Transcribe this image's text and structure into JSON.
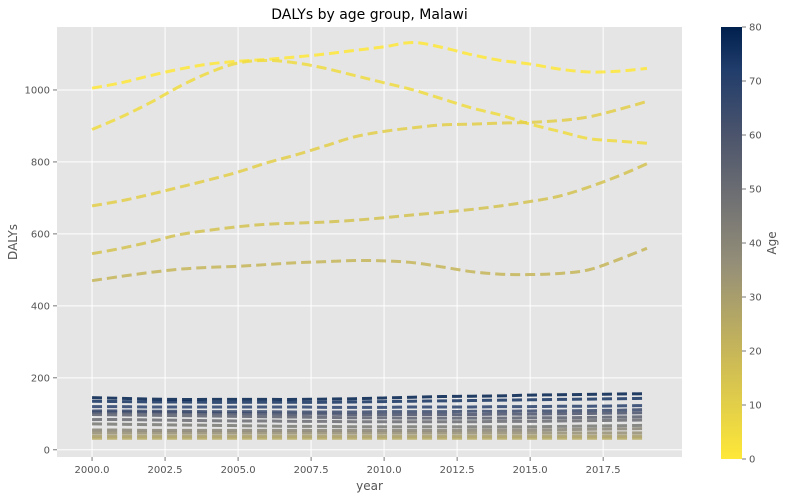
{
  "chart_data": {
    "type": "line",
    "title": "DALYs by age group, Malawi",
    "xlabel": "year",
    "ylabel": "DALYs",
    "colorbar_label": "Age",
    "colormap": "cividis (reversed)",
    "line_style": "dashed",
    "grid": true,
    "xlim": [
      1998.8,
      2020.2
    ],
    "ylim": [
      -20,
      1175
    ],
    "x_ticks": [
      2000,
      2002.5,
      2005,
      2007.5,
      2010,
      2012.5,
      2015,
      2017.5
    ],
    "x_tick_labels": [
      "2000.0",
      "2002.5",
      "2005.0",
      "2007.5",
      "2010.0",
      "2012.5",
      "2015.0",
      "2017.5"
    ],
    "y_ticks": [
      0,
      200,
      400,
      600,
      800,
      1000
    ],
    "y_tick_labels": [
      "0",
      "200",
      "400",
      "600",
      "800",
      "1000"
    ],
    "colorbar_ticks": [
      0,
      10,
      20,
      30,
      40,
      50,
      60,
      70,
      80
    ],
    "colorbar_tick_labels": [
      "0",
      "10",
      "20",
      "30",
      "40",
      "50",
      "60",
      "70",
      "80"
    ],
    "colorbar_range": [
      0,
      80
    ],
    "x": [
      2000,
      2001,
      2002,
      2003,
      2004,
      2005,
      2006,
      2007,
      2008,
      2009,
      2010,
      2011,
      2012,
      2013,
      2014,
      2015,
      2016,
      2017,
      2018,
      2019
    ],
    "series": [
      {
        "age": 0,
        "values": [
          1005,
          1020,
          1040,
          1058,
          1072,
          1080,
          1085,
          1092,
          1100,
          1110,
          1120,
          1132,
          1118,
          1098,
          1082,
          1072,
          1058,
          1050,
          1052,
          1060
        ]
      },
      {
        "age": 5,
        "values": [
          890,
          925,
          965,
          1010,
          1048,
          1075,
          1082,
          1075,
          1060,
          1040,
          1020,
          1000,
          975,
          950,
          930,
          905,
          885,
          865,
          858,
          852
        ]
      },
      {
        "age": 10,
        "values": [
          678,
          692,
          710,
          730,
          750,
          772,
          798,
          820,
          845,
          870,
          885,
          895,
          903,
          905,
          908,
          910,
          915,
          925,
          945,
          968
        ]
      },
      {
        "age": 15,
        "values": [
          545,
          560,
          578,
          598,
          610,
          620,
          627,
          630,
          633,
          638,
          645,
          653,
          660,
          668,
          678,
          690,
          705,
          730,
          760,
          795
        ]
      },
      {
        "age": 20,
        "values": [
          470,
          482,
          493,
          502,
          507,
          510,
          515,
          520,
          523,
          526,
          525,
          520,
          508,
          495,
          488,
          487,
          490,
          500,
          528,
          560
        ]
      },
      {
        "age": 25,
        "values": [
          32,
          32,
          32,
          32,
          32,
          32,
          32,
          32,
          32,
          32,
          32,
          32,
          32,
          32,
          32,
          32,
          32,
          32,
          32,
          32
        ]
      },
      {
        "age": 30,
        "values": [
          38,
          38,
          38,
          38,
          38,
          38,
          38,
          38,
          38,
          38,
          38,
          38,
          38,
          38,
          38,
          38,
          38,
          38,
          38,
          38
        ]
      },
      {
        "age": 35,
        "values": [
          47,
          47,
          47,
          47,
          47,
          47,
          47,
          47,
          47,
          47,
          47,
          47,
          47,
          47,
          47,
          47,
          47,
          47,
          47,
          47
        ]
      },
      {
        "age": 40,
        "values": [
          55,
          55,
          54,
          54,
          54,
          54,
          54,
          54,
          54,
          54,
          54,
          54,
          54,
          55,
          55,
          55,
          56,
          57,
          58,
          59
        ]
      },
      {
        "age": 45,
        "values": [
          72,
          71,
          70,
          69,
          68,
          67,
          66,
          65,
          65,
          64,
          64,
          64,
          64,
          64,
          64,
          64,
          65,
          66,
          67,
          68
        ]
      },
      {
        "age": 50,
        "values": [
          84,
          84,
          83,
          82,
          81,
          80,
          80,
          79,
          79,
          78,
          78,
          78,
          78,
          78,
          79,
          79,
          80,
          81,
          82,
          83
        ]
      },
      {
        "age": 55,
        "values": [
          98,
          97,
          96,
          95,
          94,
          93,
          92,
          91,
          90,
          89,
          89,
          88,
          88,
          88,
          88,
          89,
          89,
          90,
          91,
          92
        ]
      },
      {
        "age": 60,
        "values": [
          105,
          105,
          104,
          103,
          102,
          101,
          100,
          99,
          99,
          98,
          98,
          98,
          98,
          98,
          99,
          99,
          100,
          101,
          102,
          103
        ]
      },
      {
        "age": 65,
        "values": [
          108,
          108,
          107,
          107,
          106,
          106,
          106,
          105,
          105,
          105,
          106,
          106,
          106,
          107,
          107,
          108,
          108,
          109,
          110,
          112
        ]
      },
      {
        "age": 70,
        "values": [
          120,
          120,
          119,
          119,
          119,
          119,
          119,
          119,
          118,
          118,
          118,
          119,
          119,
          119,
          120,
          120,
          121,
          121,
          122,
          123
        ]
      },
      {
        "age": 75,
        "values": [
          135,
          134,
          133,
          133,
          132,
          132,
          132,
          132,
          132,
          133,
          134,
          135,
          136,
          137,
          138,
          139,
          140,
          141,
          142,
          143
        ]
      },
      {
        "age": 80,
        "values": [
          145,
          143,
          141,
          140,
          140,
          140,
          140,
          140,
          141,
          142,
          144,
          146,
          148,
          149,
          150,
          152,
          153,
          154,
          155,
          156
        ]
      }
    ]
  }
}
